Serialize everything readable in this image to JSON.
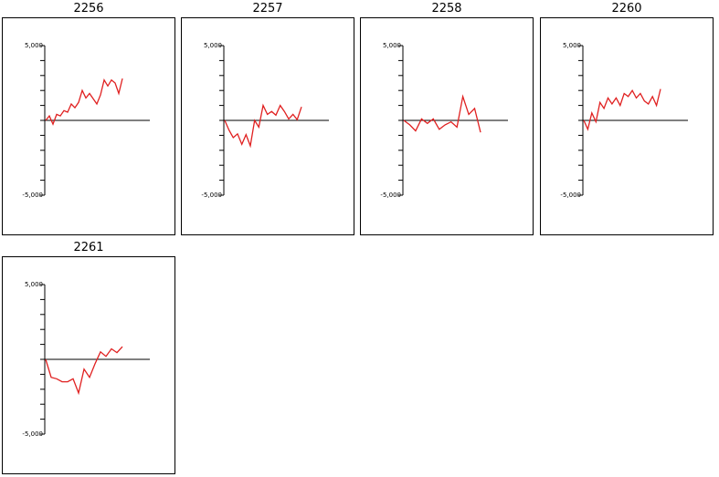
{
  "chart_data": [
    {
      "type": "line",
      "title": "2256",
      "ylim": [
        -5000,
        5000
      ],
      "y_tick_labels": [
        "5,000",
        "-5,000"
      ],
      "line_color": "#e02020",
      "values": [
        0,
        300,
        -250,
        400,
        300,
        650,
        550,
        1100,
        850,
        1200,
        2000,
        1500,
        1800,
        1450,
        1100,
        1700,
        2700,
        2300,
        2700,
        2500,
        1800,
        2800
      ]
    },
    {
      "type": "line",
      "title": "2257",
      "ylim": [
        -5000,
        5000
      ],
      "y_tick_labels": [
        "5,000",
        "-5,000"
      ],
      "line_color": "#e02020",
      "values": [
        0,
        -650,
        -1150,
        -900,
        -1600,
        -950,
        -1700,
        0,
        -450,
        1000,
        400,
        600,
        350,
        1000,
        600,
        100,
        400,
        50,
        900
      ]
    },
    {
      "type": "line",
      "title": "2258",
      "ylim": [
        -5000,
        5000
      ],
      "y_tick_labels": [
        "5,000",
        "-5,000"
      ],
      "line_color": "#e02020",
      "values": [
        0,
        -300,
        -700,
        100,
        -200,
        100,
        -600,
        -300,
        -100,
        -450,
        1600,
        400,
        800,
        -800
      ]
    },
    {
      "type": "line",
      "title": "2260",
      "ylim": [
        -5000,
        5000
      ],
      "y_tick_labels": [
        "5,000",
        "-5,000"
      ],
      "line_color": "#e02020",
      "values": [
        0,
        -600,
        500,
        -100,
        1200,
        800,
        1500,
        1100,
        1500,
        1000,
        1800,
        1600,
        2000,
        1500,
        1800,
        1300,
        1100,
        1600,
        1000,
        2100
      ]
    },
    {
      "type": "line",
      "title": "2261",
      "ylim": [
        -5000,
        5000
      ],
      "y_tick_labels": [
        "5,000",
        "-5,000"
      ],
      "line_color": "#e02020",
      "values": [
        0,
        -1200,
        -1300,
        -1500,
        -1500,
        -1300,
        -2250,
        -650,
        -1200,
        -300,
        500,
        200,
        700,
        450,
        850
      ]
    }
  ]
}
